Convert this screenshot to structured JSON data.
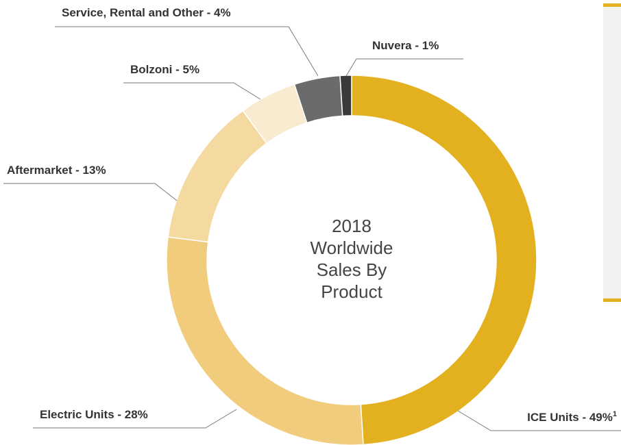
{
  "chart_data": {
    "type": "donut",
    "center_text": [
      "2018",
      "Worldwide",
      "Sales By",
      "Product"
    ],
    "categories": [
      "ICE Units - 49%",
      "Electric Units - 28%",
      "Aftermarket - 13%",
      "Bolzoni - 5%",
      "Service, Rental and Other - 4%",
      "Nuvera - 1%"
    ],
    "notes": [
      "1",
      null,
      null,
      null,
      null,
      null
    ],
    "values": [
      49,
      28,
      13,
      5,
      4,
      1
    ],
    "colors": [
      "#e3b020",
      "#f0cc7c",
      "#f4daa0",
      "#f9ebcf",
      "#6b6b6e",
      "#3a3a3b"
    ]
  }
}
